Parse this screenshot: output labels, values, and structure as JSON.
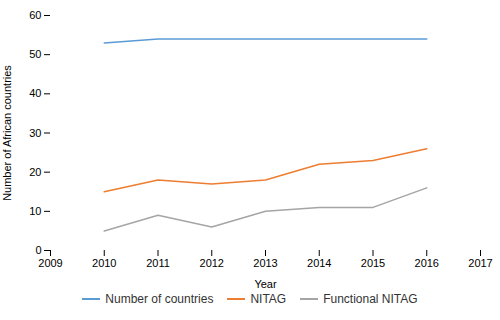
{
  "chart_data": {
    "type": "line",
    "xlabel": "Year",
    "ylabel": "Number of African countries",
    "x": [
      2010,
      2011,
      2012,
      2013,
      2014,
      2015,
      2016
    ],
    "series": [
      {
        "name": "Number of countries",
        "color": "#5B9BD5",
        "values": [
          53,
          54,
          54,
          54,
          54,
          54,
          54
        ]
      },
      {
        "name": "NITAG",
        "color": "#ED7D31",
        "values": [
          15,
          18,
          17,
          18,
          22,
          23,
          26
        ]
      },
      {
        "name": "Functional NITAG",
        "color": "#A5A5A5",
        "values": [
          5,
          9,
          6,
          10,
          11,
          11,
          16
        ]
      }
    ],
    "xlim": [
      2009,
      2017
    ],
    "ylim": [
      0,
      60
    ],
    "xticks": [
      2009,
      2010,
      2011,
      2012,
      2013,
      2014,
      2015,
      2016,
      2017
    ],
    "yticks": [
      0,
      10,
      20,
      30,
      40,
      50,
      60
    ],
    "grid": false,
    "legend": "bottom"
  }
}
